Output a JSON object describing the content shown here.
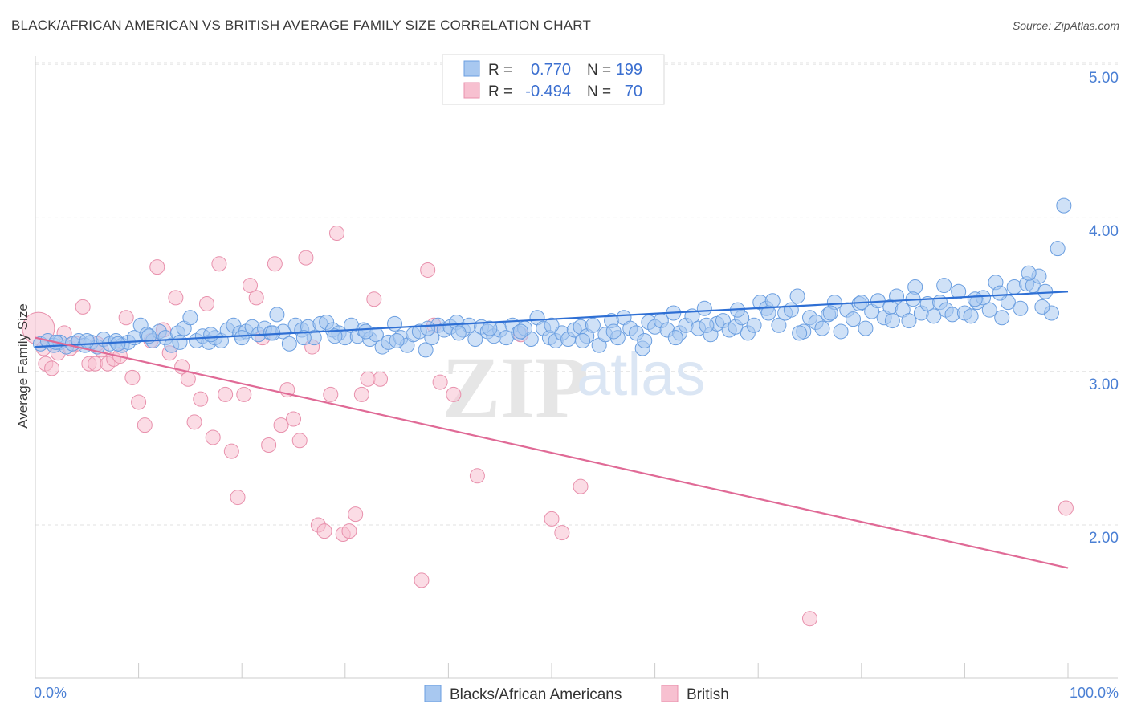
{
  "title": "BLACK/AFRICAN AMERICAN VS BRITISH AVERAGE FAMILY SIZE CORRELATION CHART",
  "source": "Source: ZipAtlas.com",
  "watermark": {
    "zip": "ZIP",
    "atlas": "atlas"
  },
  "legend": {
    "r_label": "R =",
    "n_label": "N =",
    "rows": [
      {
        "r": "0.770",
        "n": "199",
        "color": "#a8c8f0"
      },
      {
        "r": "-0.494",
        "n": "70",
        "color": "#f7b6c8"
      }
    ]
  },
  "bottom_legend": [
    "Blacks/African Americans",
    "British"
  ],
  "chart_data": {
    "type": "scatter",
    "ylabel": "Average Family Size",
    "x_ticks": [
      "0.0%",
      "100.0%"
    ],
    "y_ticks": [
      "2.00",
      "3.00",
      "4.00",
      "5.00"
    ],
    "xlim": [
      0,
      100
    ],
    "ylim": [
      1.05,
      5.1
    ],
    "colors": {
      "blue_fill": "#a8c8f0",
      "blue_stroke": "#6a9ee0",
      "blue_line": "#2e6fd4",
      "pink_fill": "#f7c0d0",
      "pink_stroke": "#e890ac",
      "pink_line": "#e06a96"
    },
    "series": [
      {
        "name": "Blacks/African Americans",
        "trend": {
          "x": [
            0,
            100
          ],
          "y": [
            3.16,
            3.52
          ]
        },
        "points": [
          [
            0.5,
            3.18
          ],
          [
            1.2,
            3.2
          ],
          [
            1.8,
            3.17
          ],
          [
            2.4,
            3.19
          ],
          [
            3.0,
            3.16
          ],
          [
            3.6,
            3.18
          ],
          [
            4.2,
            3.2
          ],
          [
            4.8,
            3.17
          ],
          [
            5.4,
            3.19
          ],
          [
            6.0,
            3.16
          ],
          [
            6.6,
            3.21
          ],
          [
            7.2,
            3.18
          ],
          [
            7.8,
            3.2
          ],
          [
            8.4,
            3.17
          ],
          [
            9.0,
            3.19
          ],
          [
            9.6,
            3.22
          ],
          [
            10.2,
            3.3
          ],
          [
            10.8,
            3.24
          ],
          [
            11.4,
            3.2
          ],
          [
            12.0,
            3.26
          ],
          [
            12.6,
            3.22
          ],
          [
            13.2,
            3.17
          ],
          [
            13.8,
            3.25
          ],
          [
            14.4,
            3.28
          ],
          [
            15.0,
            3.35
          ],
          [
            15.6,
            3.2
          ],
          [
            16.2,
            3.23
          ],
          [
            16.8,
            3.19
          ],
          [
            17.4,
            3.22
          ],
          [
            18.0,
            3.2
          ],
          [
            18.6,
            3.27
          ],
          [
            19.2,
            3.3
          ],
          [
            19.8,
            3.25
          ],
          [
            20.4,
            3.26
          ],
          [
            21.0,
            3.29
          ],
          [
            21.6,
            3.24
          ],
          [
            22.2,
            3.28
          ],
          [
            22.8,
            3.25
          ],
          [
            23.4,
            3.37
          ],
          [
            24.0,
            3.26
          ],
          [
            24.6,
            3.18
          ],
          [
            25.2,
            3.3
          ],
          [
            25.8,
            3.27
          ],
          [
            26.4,
            3.29
          ],
          [
            27.0,
            3.22
          ],
          [
            27.6,
            3.31
          ],
          [
            28.2,
            3.32
          ],
          [
            28.8,
            3.27
          ],
          [
            29.4,
            3.25
          ],
          [
            30.0,
            3.22
          ],
          [
            30.6,
            3.3
          ],
          [
            31.2,
            3.23
          ],
          [
            31.8,
            3.27
          ],
          [
            32.4,
            3.21
          ],
          [
            33.0,
            3.24
          ],
          [
            33.6,
            3.16
          ],
          [
            34.2,
            3.19
          ],
          [
            34.8,
            3.31
          ],
          [
            35.4,
            3.22
          ],
          [
            36.0,
            3.17
          ],
          [
            36.6,
            3.24
          ],
          [
            37.2,
            3.26
          ],
          [
            37.8,
            3.14
          ],
          [
            38.4,
            3.22
          ],
          [
            39.0,
            3.3
          ],
          [
            39.6,
            3.27
          ],
          [
            40.2,
            3.29
          ],
          [
            40.8,
            3.32
          ],
          [
            41.4,
            3.27
          ],
          [
            42.0,
            3.3
          ],
          [
            42.6,
            3.21
          ],
          [
            43.2,
            3.29
          ],
          [
            43.8,
            3.26
          ],
          [
            44.4,
            3.23
          ],
          [
            45.0,
            3.27
          ],
          [
            45.6,
            3.22
          ],
          [
            46.2,
            3.3
          ],
          [
            46.8,
            3.25
          ],
          [
            47.4,
            3.28
          ],
          [
            48.0,
            3.21
          ],
          [
            48.6,
            3.35
          ],
          [
            49.2,
            3.28
          ],
          [
            49.8,
            3.22
          ],
          [
            50.4,
            3.2
          ],
          [
            51.0,
            3.25
          ],
          [
            51.6,
            3.21
          ],
          [
            52.2,
            3.27
          ],
          [
            52.8,
            3.29
          ],
          [
            53.4,
            3.23
          ],
          [
            54.0,
            3.3
          ],
          [
            54.6,
            3.17
          ],
          [
            55.2,
            3.24
          ],
          [
            55.8,
            3.33
          ],
          [
            56.4,
            3.22
          ],
          [
            57.0,
            3.35
          ],
          [
            57.6,
            3.28
          ],
          [
            58.2,
            3.25
          ],
          [
            58.8,
            3.15
          ],
          [
            59.4,
            3.32
          ],
          [
            60.0,
            3.29
          ],
          [
            60.6,
            3.33
          ],
          [
            61.2,
            3.27
          ],
          [
            61.8,
            3.38
          ],
          [
            62.4,
            3.25
          ],
          [
            63.0,
            3.3
          ],
          [
            63.6,
            3.36
          ],
          [
            64.2,
            3.28
          ],
          [
            64.8,
            3.41
          ],
          [
            65.4,
            3.24
          ],
          [
            66.0,
            3.31
          ],
          [
            66.6,
            3.33
          ],
          [
            67.2,
            3.27
          ],
          [
            67.8,
            3.29
          ],
          [
            68.4,
            3.35
          ],
          [
            69.0,
            3.25
          ],
          [
            69.6,
            3.3
          ],
          [
            70.2,
            3.45
          ],
          [
            70.8,
            3.41
          ],
          [
            71.4,
            3.46
          ],
          [
            72.0,
            3.3
          ],
          [
            72.6,
            3.38
          ],
          [
            73.2,
            3.4
          ],
          [
            73.8,
            3.49
          ],
          [
            74.4,
            3.26
          ],
          [
            75.0,
            3.35
          ],
          [
            75.6,
            3.32
          ],
          [
            76.2,
            3.28
          ],
          [
            76.8,
            3.37
          ],
          [
            77.4,
            3.45
          ],
          [
            78.0,
            3.26
          ],
          [
            78.6,
            3.4
          ],
          [
            79.2,
            3.34
          ],
          [
            79.8,
            3.44
          ],
          [
            80.4,
            3.28
          ],
          [
            81.0,
            3.39
          ],
          [
            81.6,
            3.46
          ],
          [
            82.2,
            3.35
          ],
          [
            82.8,
            3.42
          ],
          [
            83.4,
            3.49
          ],
          [
            84.0,
            3.4
          ],
          [
            84.6,
            3.33
          ],
          [
            85.2,
            3.55
          ],
          [
            85.8,
            3.38
          ],
          [
            86.4,
            3.44
          ],
          [
            87.0,
            3.36
          ],
          [
            87.6,
            3.45
          ],
          [
            88.2,
            3.4
          ],
          [
            88.8,
            3.37
          ],
          [
            89.4,
            3.52
          ],
          [
            90.0,
            3.38
          ],
          [
            90.6,
            3.36
          ],
          [
            91.2,
            3.45
          ],
          [
            91.8,
            3.48
          ],
          [
            92.4,
            3.4
          ],
          [
            93.0,
            3.58
          ],
          [
            93.6,
            3.35
          ],
          [
            94.2,
            3.45
          ],
          [
            94.8,
            3.55
          ],
          [
            95.4,
            3.41
          ],
          [
            96.0,
            3.57
          ],
          [
            96.6,
            3.56
          ],
          [
            97.2,
            3.62
          ],
          [
            97.8,
            3.52
          ],
          [
            98.4,
            3.38
          ],
          [
            99.0,
            3.8
          ],
          [
            99.6,
            4.08
          ],
          [
            97.5,
            3.42
          ],
          [
            96.2,
            3.64
          ],
          [
            93.4,
            3.51
          ],
          [
            91.0,
            3.47
          ],
          [
            88.0,
            3.56
          ],
          [
            85.0,
            3.47
          ],
          [
            83.0,
            3.33
          ],
          [
            80.0,
            3.45
          ],
          [
            77.0,
            3.38
          ],
          [
            74.0,
            3.25
          ],
          [
            71.0,
            3.38
          ],
          [
            68.0,
            3.4
          ],
          [
            65.0,
            3.3
          ],
          [
            62.0,
            3.22
          ],
          [
            59.0,
            3.2
          ],
          [
            56.0,
            3.26
          ],
          [
            53.0,
            3.2
          ],
          [
            50.0,
            3.3
          ],
          [
            47.0,
            3.26
          ],
          [
            44.0,
            3.28
          ],
          [
            41.0,
            3.25
          ],
          [
            38.0,
            3.28
          ],
          [
            35.0,
            3.2
          ],
          [
            32.0,
            3.26
          ],
          [
            29.0,
            3.23
          ],
          [
            26.0,
            3.22
          ],
          [
            23.0,
            3.25
          ],
          [
            20.0,
            3.22
          ],
          [
            17.0,
            3.24
          ],
          [
            14.0,
            3.19
          ],
          [
            11.0,
            3.23
          ],
          [
            8.0,
            3.18
          ],
          [
            5.0,
            3.2
          ],
          [
            2.0,
            3.19
          ]
        ]
      },
      {
        "name": "British",
        "trend": {
          "x": [
            0,
            100
          ],
          "y": [
            3.22,
            1.72
          ]
        },
        "points": [
          [
            0.3,
            3.28
          ],
          [
            1.0,
            3.05
          ],
          [
            1.6,
            3.02
          ],
          [
            2.2,
            3.12
          ],
          [
            2.8,
            3.25
          ],
          [
            3.4,
            3.15
          ],
          [
            4.0,
            3.18
          ],
          [
            4.6,
            3.42
          ],
          [
            5.2,
            3.05
          ],
          [
            5.8,
            3.05
          ],
          [
            6.4,
            3.14
          ],
          [
            7.0,
            3.05
          ],
          [
            7.6,
            3.08
          ],
          [
            8.2,
            3.1
          ],
          [
            8.8,
            3.35
          ],
          [
            9.4,
            2.96
          ],
          [
            10.0,
            2.8
          ],
          [
            10.6,
            2.65
          ],
          [
            11.2,
            3.2
          ],
          [
            11.8,
            3.68
          ],
          [
            12.4,
            3.27
          ],
          [
            13.0,
            3.12
          ],
          [
            13.6,
            3.48
          ],
          [
            14.2,
            3.03
          ],
          [
            14.8,
            2.95
          ],
          [
            15.4,
            2.67
          ],
          [
            16.0,
            2.82
          ],
          [
            16.6,
            3.44
          ],
          [
            17.2,
            2.57
          ],
          [
            17.8,
            3.7
          ],
          [
            18.4,
            2.85
          ],
          [
            19.0,
            2.48
          ],
          [
            19.6,
            2.18
          ],
          [
            20.2,
            2.85
          ],
          [
            20.8,
            3.56
          ],
          [
            21.4,
            3.48
          ],
          [
            22.0,
            3.22
          ],
          [
            22.6,
            2.52
          ],
          [
            23.2,
            3.7
          ],
          [
            23.8,
            2.65
          ],
          [
            24.4,
            2.88
          ],
          [
            25.0,
            2.69
          ],
          [
            25.6,
            2.55
          ],
          [
            26.2,
            3.74
          ],
          [
            26.8,
            3.16
          ],
          [
            27.4,
            2.0
          ],
          [
            28.0,
            1.96
          ],
          [
            28.6,
            2.85
          ],
          [
            29.2,
            3.9
          ],
          [
            29.8,
            1.94
          ],
          [
            30.4,
            1.96
          ],
          [
            31.0,
            2.07
          ],
          [
            31.6,
            2.85
          ],
          [
            32.2,
            2.95
          ],
          [
            32.8,
            3.47
          ],
          [
            33.4,
            2.95
          ],
          [
            37.4,
            1.64
          ],
          [
            38.0,
            3.66
          ],
          [
            38.6,
            3.3
          ],
          [
            39.2,
            2.93
          ],
          [
            40.5,
            2.85
          ],
          [
            42.8,
            2.32
          ],
          [
            47.0,
            3.24
          ],
          [
            50.0,
            2.04
          ],
          [
            51.0,
            1.95
          ],
          [
            52.8,
            2.25
          ],
          [
            75.0,
            1.39
          ],
          [
            99.8,
            2.11
          ],
          [
            0.8,
            3.15
          ],
          [
            6.0,
            3.18
          ]
        ]
      }
    ]
  }
}
